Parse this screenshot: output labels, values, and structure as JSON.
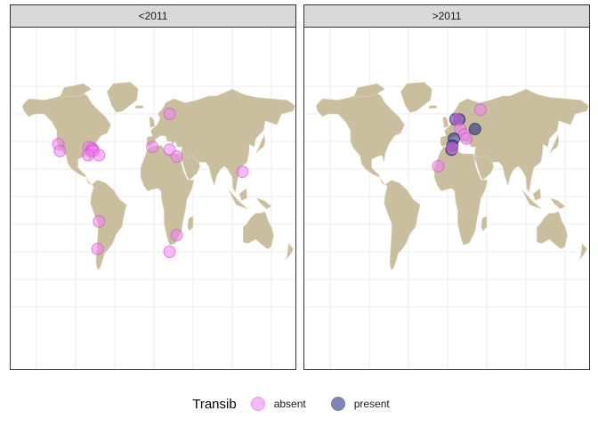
{
  "panels": [
    {
      "label": "<2011"
    },
    {
      "label": ">2011"
    }
  ],
  "legend": {
    "title": "Transib",
    "items": [
      {
        "label": "absent",
        "color": "#ee82ee",
        "edge": "#cc44cc"
      },
      {
        "label": "present",
        "color": "#1a237e",
        "edge": "#0d1452"
      }
    ]
  },
  "colors": {
    "land": "#c9bf9f",
    "grid": "#ebebeb"
  },
  "chart_data": {
    "type": "scatter",
    "facet_by": "period",
    "series": [
      {
        "name": "absent",
        "color": "#ee82ee"
      },
      {
        "name": "present",
        "color": "#1a237e"
      }
    ],
    "points": [
      {
        "panel": 0,
        "status": "absent",
        "lon": -122,
        "lat": 38
      },
      {
        "panel": 0,
        "status": "absent",
        "lon": -120,
        "lat": 33
      },
      {
        "panel": 0,
        "status": "absent",
        "lon": -83,
        "lat": 36
      },
      {
        "panel": 0,
        "status": "absent",
        "lon": -80,
        "lat": 33
      },
      {
        "panel": 0,
        "status": "absent",
        "lon": -79,
        "lat": 35
      },
      {
        "panel": 0,
        "status": "absent",
        "lon": -78,
        "lat": 34
      },
      {
        "panel": 0,
        "status": "absent",
        "lon": -77,
        "lat": 33
      },
      {
        "panel": 0,
        "status": "absent",
        "lon": -84,
        "lat": 30
      },
      {
        "panel": 0,
        "status": "absent",
        "lon": -70,
        "lat": 30
      },
      {
        "panel": 0,
        "status": "absent",
        "lon": 20,
        "lat": 60
      },
      {
        "panel": 0,
        "status": "absent",
        "lon": -2,
        "lat": 36
      },
      {
        "panel": 0,
        "status": "absent",
        "lon": 20,
        "lat": 34
      },
      {
        "panel": 0,
        "status": "absent",
        "lon": 29,
        "lat": 29
      },
      {
        "panel": 0,
        "status": "absent",
        "lon": 113,
        "lat": 18
      },
      {
        "panel": 0,
        "status": "absent",
        "lon": -70,
        "lat": -18
      },
      {
        "panel": 0,
        "status": "absent",
        "lon": -72,
        "lat": -38
      },
      {
        "panel": 0,
        "status": "absent",
        "lon": 29,
        "lat": -28
      },
      {
        "panel": 0,
        "status": "absent",
        "lon": 20,
        "lat": -40
      },
      {
        "panel": 1,
        "status": "absent",
        "lon": 42,
        "lat": 63
      },
      {
        "panel": 1,
        "status": "present",
        "lon": 10,
        "lat": 56
      },
      {
        "panel": 1,
        "status": "present",
        "lon": 15,
        "lat": 56
      },
      {
        "panel": 1,
        "status": "absent",
        "lon": 12,
        "lat": 56
      },
      {
        "panel": 1,
        "status": "absent",
        "lon": 16,
        "lat": 49
      },
      {
        "panel": 1,
        "status": "absent",
        "lon": 21,
        "lat": 45
      },
      {
        "panel": 1,
        "status": "absent",
        "lon": 24,
        "lat": 42
      },
      {
        "panel": 1,
        "status": "present",
        "lon": 35,
        "lat": 49
      },
      {
        "panel": 1,
        "status": "present",
        "lon": 8,
        "lat": 42
      },
      {
        "panel": 1,
        "status": "present",
        "lon": 6,
        "lat": 37
      },
      {
        "panel": 1,
        "status": "present",
        "lon": 5,
        "lat": 34
      },
      {
        "panel": 1,
        "status": "absent",
        "lon": 6,
        "lat": 35
      },
      {
        "panel": 1,
        "status": "absent",
        "lon": -12,
        "lat": 22
      }
    ]
  }
}
